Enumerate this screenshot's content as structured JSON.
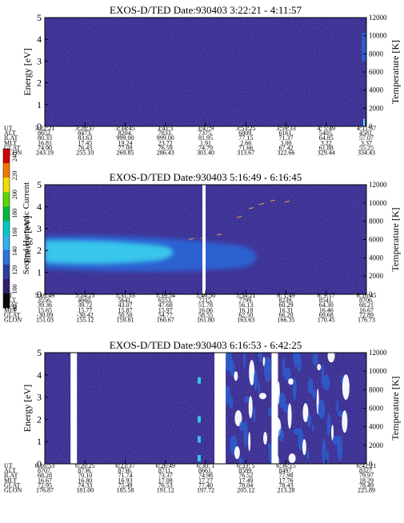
{
  "colors": {
    "background": "#3a2d8f",
    "mid": "#3c4fb8",
    "cyan_core": "#38c6ec",
    "cyan_light": "#63d8f4",
    "blue": "#2a66d8",
    "white": "#ffffff"
  },
  "colorbar": {
    "label": "Second Harmonic Current",
    "ticks": [
      "240",
      "220",
      "200",
      "180",
      "160",
      "140",
      "120",
      "100",
      "80"
    ],
    "colors": [
      "#d40000",
      "#f07800",
      "#f0e000",
      "#58d800",
      "#00b838",
      "#00c8c8",
      "#2db2f0",
      "#2c72d8",
      "#2d3f9a",
      "#321e6a",
      "#0a0a0a"
    ]
  },
  "chart_data": [
    {
      "type": "heatmap",
      "title": "EXOS-D/TED   Date:930403   3:22:21 - 4:11:57",
      "ylabel": "Energy [eV]",
      "ylabel_right": "Temperature [K]",
      "ylim": [
        0,
        5
      ],
      "yticks": [
        "0",
        "1",
        "2",
        "3",
        "4",
        "5"
      ],
      "ylim_right": [
        0,
        12000
      ],
      "yticks_right": [
        "0",
        "2000",
        "4000",
        "6000",
        "8000",
        "10000",
        "12000"
      ],
      "row_labels": [
        "UT",
        "ALT",
        "ILAT",
        "MLT",
        "GLAT",
        "GLON"
      ],
      "columns": [
        [
          "3:22:21",
          "8652.",
          "80.33",
          "16.81",
          "74.90",
          "243.19"
        ],
        [
          "3:28:37",
          "8473.",
          "83.63",
          "17.45",
          "76.43",
          "255.10"
        ],
        [
          "3:34:45",
          "8204.",
          "999.00",
          "19.24",
          "77.09",
          "269.85"
        ],
        [
          "3:41:1",
          "7833.",
          "999.00",
          "23.72",
          "76.59",
          "286.43"
        ],
        [
          "3:47:9",
          "7375.",
          "81.95",
          "1.91",
          "74.79",
          "301.40"
        ],
        [
          "3:53:25",
          "6809.",
          "77.15",
          "2.66",
          "71.66",
          "313.67"
        ],
        [
          "3:59:33",
          "6161.",
          "71.37",
          "3.00",
          "67.42",
          "322.66"
        ],
        [
          "4: 5:49",
          "5405.",
          "64.85",
          "3.22",
          "61.88",
          "329.44"
        ],
        [
          "4:11:57",
          "4581.",
          "57.07",
          "3.37",
          "55.25",
          "334.43"
        ]
      ],
      "gaps": []
    },
    {
      "type": "heatmap",
      "title": "EXOS-D/TED   Date:930403   5:16:49 - 6:16:45",
      "ylabel": "Energy [eV]",
      "ylabel_right": "Temperature [K]",
      "ylim": [
        0,
        5
      ],
      "yticks": [
        "0",
        "1",
        "2",
        "3",
        "4",
        "5"
      ],
      "ylim_right": [
        0,
        12000
      ],
      "yticks_right": [
        "0",
        "2000",
        "4000",
        "6000",
        "8000",
        "10000",
        "12000"
      ],
      "row_labels": [
        "UT",
        "ALT",
        "ILAT",
        "MLT",
        "GLAT",
        "GLON"
      ],
      "columns": [
        [
          "5:16:49",
          "3556.",
          "39.36",
          "15.65",
          "-30.09",
          "151.03"
        ],
        [
          "5:24:25",
          "4660.",
          "39.72",
          "15.77",
          "-30.42",
          "155.12"
        ],
        [
          "5:31:53",
          "5641.",
          "43.07",
          "15.87",
          "50.50",
          "159.81"
        ],
        [
          "5:39:54",
          "6553.",
          "47.68",
          "15.97",
          "54.77",
          "160.67"
        ],
        [
          "5:46:50",
          "7215.",
          "51.78",
          "16.06",
          "58.55",
          "161.80"
        ],
        [
          "5:54:21",
          "7799.",
          "56.13",
          "16.18",
          "62.50",
          "163.63"
        ],
        [
          "6: 1:49",
          "8239.",
          "60.29",
          "16.31",
          "66.20",
          "166.35"
        ],
        [
          "6: 9:17",
          "8541.",
          "64.30",
          "16.46",
          "69.68",
          "170.45"
        ],
        [
          "6:16:45",
          "8706.",
          "68.21",
          "16.67",
          "72.89",
          "176.73"
        ]
      ],
      "gaps": [
        0.495
      ]
    },
    {
      "type": "heatmap",
      "title": "EXOS-D/TED   Date:930403   6:16:53 - 6:42:25",
      "ylabel": "Energy [eV]",
      "ylabel_right": "Temperature [K]",
      "ylim": [
        0,
        5
      ],
      "yticks": [
        "0",
        "1",
        "2",
        "3",
        "4",
        "5"
      ],
      "ylim_right": [
        0,
        12000
      ],
      "yticks_right": [
        "0",
        "2000",
        "4000",
        "6000",
        "8000",
        "10000",
        "12000"
      ],
      "row_labels": [
        "UT",
        "ALT",
        "ILAT",
        "MLT",
        "GLAT",
        "GLON"
      ],
      "columns": [
        [
          "6:16:53",
          "8707.",
          "68.28",
          "16.67",
          "72.95",
          "176.87"
        ],
        [
          "6:20:25",
          "8736.",
          "70.10",
          "16.80",
          "74.33",
          "181.00"
        ],
        [
          "6:23:37",
          "8736.",
          "71.74",
          "16.93",
          "75.49",
          "185.58"
        ],
        [
          "6:26:49",
          "8711.",
          "73.37",
          "17.08",
          "76.53",
          "191.12"
        ],
        [
          "6:30: 1",
          "8661.",
          "74.98",
          "17.27",
          "77.40",
          "197.72"
        ],
        [
          "6:33: 5",
          "8589.",
          "76.52",
          "17.49",
          "78.04",
          "205.12"
        ],
        [
          "6:36:15",
          "8497.",
          "77.98",
          "17.76",
          "78.43",
          "213.28"
        ],
        [
          "",
          "",
          "",
          "",
          "",
          ""
        ],
        [
          "6:42:21",
          "8327.",
          "79.97",
          "18.29",
          "78.49",
          "225.89"
        ]
      ],
      "gaps": [
        0.09,
        0.545,
        0.715
      ]
    }
  ]
}
